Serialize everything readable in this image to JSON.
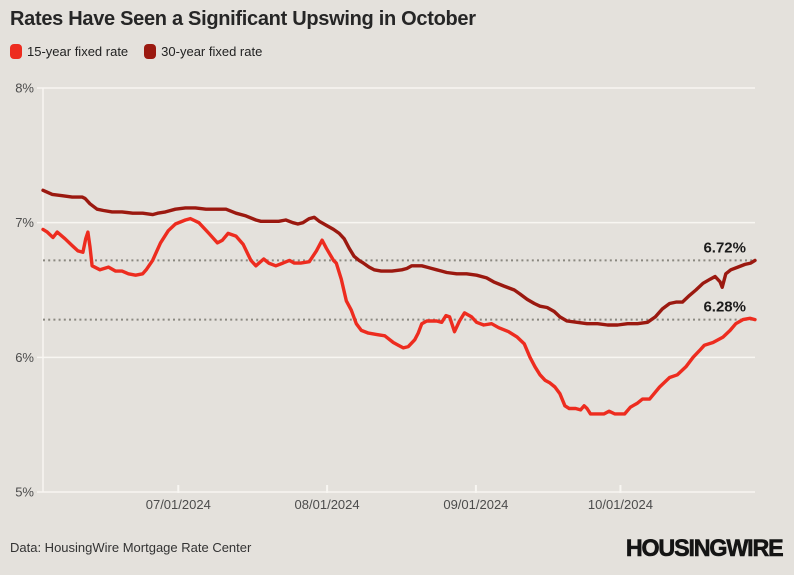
{
  "header": {
    "title": "Rates Have Seen a Significant Upswing in October"
  },
  "legend": {
    "items": [
      {
        "label": "15-year fixed rate",
        "color": "#ed2c1f"
      },
      {
        "label": "30-year fixed rate",
        "color": "#9b1910"
      }
    ]
  },
  "chart_data": {
    "type": "line",
    "title": "Rates Have Seen a Significant Upswing in October",
    "xlabel": "",
    "ylabel": "",
    "ylim": [
      5,
      8
    ],
    "grid": "horizontal-only",
    "colors": {
      "background": "#e4e1dc",
      "gridline": "#f8f6f2",
      "dotted": "#8a8880",
      "axis_text": "#4c4c4c",
      "annotation_text": "#1c1c1c"
    },
    "yticks": [
      {
        "value": 8,
        "label": "8%"
      },
      {
        "value": 7,
        "label": "7%"
      },
      {
        "value": 6,
        "label": "6%"
      },
      {
        "value": 5,
        "label": "5%"
      }
    ],
    "xticks": [
      {
        "t": 0.19,
        "label": "07/01/2024"
      },
      {
        "t": 0.399,
        "label": "08/01/2024"
      },
      {
        "t": 0.608,
        "label": "09/01/2024"
      },
      {
        "t": 0.811,
        "label": "10/01/2024"
      }
    ],
    "reference_lines": [
      {
        "value": 6.72,
        "label": "6.72%"
      },
      {
        "value": 6.28,
        "label": "6.28%"
      }
    ],
    "series": [
      {
        "name": "30-year fixed rate",
        "color": "#9b1910",
        "points": [
          [
            0.0,
            7.24
          ],
          [
            0.013,
            7.21
          ],
          [
            0.027,
            7.2
          ],
          [
            0.041,
            7.19
          ],
          [
            0.055,
            7.19
          ],
          [
            0.059,
            7.18
          ],
          [
            0.066,
            7.14
          ],
          [
            0.076,
            7.1
          ],
          [
            0.085,
            7.09
          ],
          [
            0.097,
            7.08
          ],
          [
            0.111,
            7.08
          ],
          [
            0.126,
            7.07
          ],
          [
            0.14,
            7.07
          ],
          [
            0.154,
            7.06
          ],
          [
            0.161,
            7.07
          ],
          [
            0.172,
            7.08
          ],
          [
            0.186,
            7.1
          ],
          [
            0.2,
            7.11
          ],
          [
            0.214,
            7.11
          ],
          [
            0.229,
            7.1
          ],
          [
            0.243,
            7.1
          ],
          [
            0.257,
            7.1
          ],
          [
            0.271,
            7.07
          ],
          [
            0.285,
            7.05
          ],
          [
            0.299,
            7.02
          ],
          [
            0.306,
            7.01
          ],
          [
            0.317,
            7.01
          ],
          [
            0.331,
            7.01
          ],
          [
            0.341,
            7.02
          ],
          [
            0.351,
            7.0
          ],
          [
            0.358,
            6.99
          ],
          [
            0.365,
            7.0
          ],
          [
            0.374,
            7.03
          ],
          [
            0.381,
            7.04
          ],
          [
            0.388,
            7.01
          ],
          [
            0.398,
            6.98
          ],
          [
            0.408,
            6.95
          ],
          [
            0.416,
            6.92
          ],
          [
            0.423,
            6.88
          ],
          [
            0.43,
            6.81
          ],
          [
            0.437,
            6.75
          ],
          [
            0.444,
            6.72
          ],
          [
            0.45,
            6.7
          ],
          [
            0.458,
            6.67
          ],
          [
            0.465,
            6.65
          ],
          [
            0.475,
            6.64
          ],
          [
            0.49,
            6.64
          ],
          [
            0.504,
            6.65
          ],
          [
            0.511,
            6.66
          ],
          [
            0.518,
            6.68
          ],
          [
            0.525,
            6.68
          ],
          [
            0.532,
            6.68
          ],
          [
            0.539,
            6.67
          ],
          [
            0.546,
            6.66
          ],
          [
            0.553,
            6.65
          ],
          [
            0.56,
            6.64
          ],
          [
            0.567,
            6.63
          ],
          [
            0.581,
            6.62
          ],
          [
            0.595,
            6.62
          ],
          [
            0.609,
            6.61
          ],
          [
            0.623,
            6.59
          ],
          [
            0.633,
            6.56
          ],
          [
            0.647,
            6.53
          ],
          [
            0.662,
            6.5
          ],
          [
            0.67,
            6.47
          ],
          [
            0.68,
            6.43
          ],
          [
            0.69,
            6.4
          ],
          [
            0.698,
            6.38
          ],
          [
            0.708,
            6.37
          ],
          [
            0.718,
            6.34
          ],
          [
            0.726,
            6.3
          ],
          [
            0.736,
            6.27
          ],
          [
            0.75,
            6.26
          ],
          [
            0.764,
            6.25
          ],
          [
            0.779,
            6.25
          ],
          [
            0.793,
            6.24
          ],
          [
            0.807,
            6.24
          ],
          [
            0.821,
            6.25
          ],
          [
            0.835,
            6.25
          ],
          [
            0.849,
            6.26
          ],
          [
            0.86,
            6.3
          ],
          [
            0.87,
            6.36
          ],
          [
            0.88,
            6.4
          ],
          [
            0.889,
            6.41
          ],
          [
            0.898,
            6.41
          ],
          [
            0.908,
            6.46
          ],
          [
            0.917,
            6.5
          ],
          [
            0.927,
            6.55
          ],
          [
            0.937,
            6.58
          ],
          [
            0.944,
            6.6
          ],
          [
            0.951,
            6.56
          ],
          [
            0.954,
            6.52
          ],
          [
            0.959,
            6.62
          ],
          [
            0.966,
            6.65
          ],
          [
            0.976,
            6.67
          ],
          [
            0.986,
            6.69
          ],
          [
            0.994,
            6.7
          ],
          [
            1.0,
            6.72
          ]
        ]
      },
      {
        "name": "15-year fixed rate",
        "color": "#ed2c1f",
        "points": [
          [
            0.0,
            6.95
          ],
          [
            0.006,
            6.93
          ],
          [
            0.014,
            6.89
          ],
          [
            0.02,
            6.93
          ],
          [
            0.031,
            6.88
          ],
          [
            0.041,
            6.83
          ],
          [
            0.049,
            6.79
          ],
          [
            0.056,
            6.78
          ],
          [
            0.06,
            6.88
          ],
          [
            0.063,
            6.93
          ],
          [
            0.066,
            6.82
          ],
          [
            0.069,
            6.68
          ],
          [
            0.08,
            6.65
          ],
          [
            0.092,
            6.67
          ],
          [
            0.102,
            6.64
          ],
          [
            0.111,
            6.64
          ],
          [
            0.12,
            6.62
          ],
          [
            0.13,
            6.61
          ],
          [
            0.14,
            6.62
          ],
          [
            0.145,
            6.65
          ],
          [
            0.154,
            6.72
          ],
          [
            0.165,
            6.85
          ],
          [
            0.176,
            6.94
          ],
          [
            0.186,
            6.99
          ],
          [
            0.2,
            7.02
          ],
          [
            0.207,
            7.03
          ],
          [
            0.219,
            7.0
          ],
          [
            0.233,
            6.92
          ],
          [
            0.245,
            6.85
          ],
          [
            0.252,
            6.87
          ],
          [
            0.26,
            6.92
          ],
          [
            0.271,
            6.9
          ],
          [
            0.281,
            6.84
          ],
          [
            0.292,
            6.72
          ],
          [
            0.299,
            6.68
          ],
          [
            0.31,
            6.73
          ],
          [
            0.317,
            6.7
          ],
          [
            0.327,
            6.68
          ],
          [
            0.337,
            6.7
          ],
          [
            0.346,
            6.72
          ],
          [
            0.353,
            6.7
          ],
          [
            0.362,
            6.7
          ],
          [
            0.374,
            6.71
          ],
          [
            0.384,
            6.79
          ],
          [
            0.392,
            6.87
          ],
          [
            0.398,
            6.81
          ],
          [
            0.408,
            6.72
          ],
          [
            0.412,
            6.7
          ],
          [
            0.419,
            6.58
          ],
          [
            0.426,
            6.42
          ],
          [
            0.433,
            6.35
          ],
          [
            0.44,
            6.25
          ],
          [
            0.447,
            6.2
          ],
          [
            0.457,
            6.18
          ],
          [
            0.468,
            6.17
          ],
          [
            0.48,
            6.16
          ],
          [
            0.492,
            6.11
          ],
          [
            0.499,
            6.09
          ],
          [
            0.506,
            6.07
          ],
          [
            0.513,
            6.08
          ],
          [
            0.522,
            6.13
          ],
          [
            0.527,
            6.18
          ],
          [
            0.532,
            6.25
          ],
          [
            0.539,
            6.27
          ],
          [
            0.546,
            6.27
          ],
          [
            0.553,
            6.27
          ],
          [
            0.56,
            6.26
          ],
          [
            0.566,
            6.31
          ],
          [
            0.571,
            6.3
          ],
          [
            0.578,
            6.19
          ],
          [
            0.585,
            6.27
          ],
          [
            0.592,
            6.33
          ],
          [
            0.602,
            6.3
          ],
          [
            0.609,
            6.26
          ],
          [
            0.619,
            6.24
          ],
          [
            0.63,
            6.25
          ],
          [
            0.64,
            6.22
          ],
          [
            0.654,
            6.19
          ],
          [
            0.666,
            6.15
          ],
          [
            0.676,
            6.1
          ],
          [
            0.684,
            6.0
          ],
          [
            0.691,
            5.93
          ],
          [
            0.698,
            5.87
          ],
          [
            0.705,
            5.83
          ],
          [
            0.712,
            5.81
          ],
          [
            0.719,
            5.78
          ],
          [
            0.726,
            5.73
          ],
          [
            0.733,
            5.64
          ],
          [
            0.739,
            5.62
          ],
          [
            0.748,
            5.62
          ],
          [
            0.755,
            5.61
          ],
          [
            0.76,
            5.64
          ],
          [
            0.764,
            5.62
          ],
          [
            0.769,
            5.58
          ],
          [
            0.779,
            5.58
          ],
          [
            0.788,
            5.58
          ],
          [
            0.795,
            5.6
          ],
          [
            0.803,
            5.58
          ],
          [
            0.81,
            5.58
          ],
          [
            0.817,
            5.58
          ],
          [
            0.825,
            5.63
          ],
          [
            0.835,
            5.66
          ],
          [
            0.842,
            5.69
          ],
          [
            0.852,
            5.69
          ],
          [
            0.866,
            5.78
          ],
          [
            0.88,
            5.85
          ],
          [
            0.891,
            5.87
          ],
          [
            0.903,
            5.93
          ],
          [
            0.913,
            6.0
          ],
          [
            0.922,
            6.05
          ],
          [
            0.929,
            6.09
          ],
          [
            0.941,
            6.11
          ],
          [
            0.955,
            6.15
          ],
          [
            0.965,
            6.2
          ],
          [
            0.973,
            6.25
          ],
          [
            0.983,
            6.28
          ],
          [
            0.993,
            6.29
          ],
          [
            1.0,
            6.28
          ]
        ]
      }
    ]
  },
  "footer": {
    "source": "Data: HousingWire Mortgage Rate Center",
    "logo": "HOUSINGWIRE"
  }
}
